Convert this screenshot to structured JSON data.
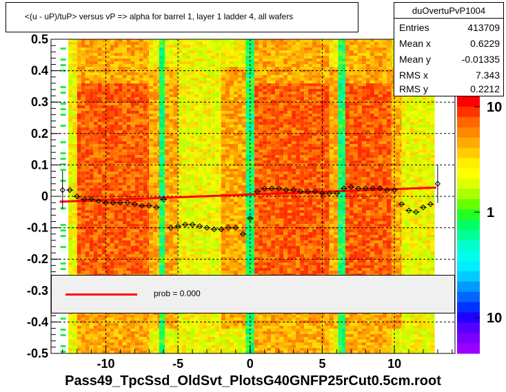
{
  "title": "<(u - uP)/tuP> versus   vP => alpha for barrel 1, layer 1 ladder 4, all wafers",
  "stats": {
    "name": "duOvertuPvP1004",
    "rows": [
      {
        "key": "Entries",
        "value": "413709"
      },
      {
        "key": "Mean x",
        "value": "0.6229"
      },
      {
        "key": "Mean y",
        "value": "-0.01335"
      },
      {
        "key": "RMS x",
        "value": "7.343"
      },
      {
        "key": "RMS y",
        "value": "0.2212"
      }
    ]
  },
  "legend": {
    "label": "prob = 0.000",
    "color": "#ff0000"
  },
  "filename": "Pass49_TpcSsd_OldSvt_PlotsG40GNFP25rCut0.5cm.root",
  "chart_data": {
    "type": "heatmap",
    "xlim": [
      -13.8,
      14.2
    ],
    "ylim": [
      -0.5,
      0.5
    ],
    "x_ticks": [
      -10,
      -5,
      0,
      5,
      10
    ],
    "x_tick_labels": [
      "-10",
      "-5",
      "0",
      "5",
      "10"
    ],
    "y_ticks": [
      -0.5,
      -0.4,
      -0.3,
      -0.2,
      -0.1,
      0,
      0.1,
      0.2,
      0.3,
      0.4,
      0.5
    ],
    "y_tick_labels": [
      "-0.5",
      "-0.4",
      "-0.3",
      "-0.2",
      "-0.1",
      "0",
      "0.1",
      "0.2",
      "0.3",
      "0.4",
      "0.5"
    ],
    "colorbar": {
      "scale": "log",
      "tick_labels": [
        "10",
        "1",
        "10"
      ]
    },
    "grid": true,
    "fit_line": {
      "x": [
        -13.2,
        12.9
      ],
      "y": [
        -0.017,
        0.028
      ],
      "color": "#ff0000"
    },
    "profile_points": [
      {
        "x": -13.0,
        "y": 0.02
      },
      {
        "x": -12.5,
        "y": 0.02
      },
      {
        "x": -12.0,
        "y": 0.0
      },
      {
        "x": -11.5,
        "y": -0.01
      },
      {
        "x": -11.0,
        "y": -0.01
      },
      {
        "x": -10.5,
        "y": -0.015
      },
      {
        "x": -10.0,
        "y": -0.02
      },
      {
        "x": -9.5,
        "y": -0.02
      },
      {
        "x": -9.0,
        "y": -0.02
      },
      {
        "x": -8.5,
        "y": -0.02
      },
      {
        "x": -8.0,
        "y": -0.025
      },
      {
        "x": -7.5,
        "y": -0.03
      },
      {
        "x": -7.0,
        "y": -0.03
      },
      {
        "x": -6.5,
        "y": -0.035
      },
      {
        "x": -6.0,
        "y": -0.01
      },
      {
        "x": -5.5,
        "y": -0.1
      },
      {
        "x": -5.0,
        "y": -0.095
      },
      {
        "x": -4.5,
        "y": -0.09
      },
      {
        "x": -4.0,
        "y": -0.09
      },
      {
        "x": -3.5,
        "y": -0.095
      },
      {
        "x": -3.0,
        "y": -0.1
      },
      {
        "x": -2.5,
        "y": -0.105
      },
      {
        "x": -2.0,
        "y": -0.105
      },
      {
        "x": -1.5,
        "y": -0.1
      },
      {
        "x": -1.0,
        "y": -0.1
      },
      {
        "x": -0.5,
        "y": -0.12
      },
      {
        "x": 0.0,
        "y": -0.07
      },
      {
        "x": 0.5,
        "y": 0.015
      },
      {
        "x": 1.0,
        "y": 0.025
      },
      {
        "x": 1.5,
        "y": 0.025
      },
      {
        "x": 2.0,
        "y": 0.025
      },
      {
        "x": 2.5,
        "y": 0.02
      },
      {
        "x": 3.0,
        "y": 0.02
      },
      {
        "x": 3.5,
        "y": 0.015
      },
      {
        "x": 4.0,
        "y": 0.015
      },
      {
        "x": 4.5,
        "y": 0.015
      },
      {
        "x": 5.0,
        "y": 0.01
      },
      {
        "x": 5.5,
        "y": 0.01
      },
      {
        "x": 6.0,
        "y": 0.01
      },
      {
        "x": 6.5,
        "y": 0.025
      },
      {
        "x": 7.0,
        "y": 0.03
      },
      {
        "x": 7.5,
        "y": 0.025
      },
      {
        "x": 8.0,
        "y": 0.025
      },
      {
        "x": 8.5,
        "y": 0.025
      },
      {
        "x": 9.0,
        "y": 0.025
      },
      {
        "x": 9.5,
        "y": 0.02
      },
      {
        "x": 10.0,
        "y": 0.02
      },
      {
        "x": 10.5,
        "y": -0.025
      },
      {
        "x": 11.0,
        "y": -0.045
      },
      {
        "x": 11.5,
        "y": -0.05
      },
      {
        "x": 12.0,
        "y": -0.035
      },
      {
        "x": 12.5,
        "y": -0.025
      },
      {
        "x": 13.0,
        "y": 0.04
      }
    ],
    "bands": [
      {
        "x0": -12.6,
        "x1": -12.0,
        "kind": "yellow"
      },
      {
        "x0": -12.0,
        "x1": -7.0,
        "kind": "hot"
      },
      {
        "x0": -7.0,
        "x1": -6.3,
        "kind": "warm"
      },
      {
        "x0": -6.3,
        "x1": -5.9,
        "kind": "green"
      },
      {
        "x0": -5.9,
        "x1": -5.0,
        "kind": "warm"
      },
      {
        "x0": -5.0,
        "x1": -2.0,
        "kind": "yellow"
      },
      {
        "x0": -2.0,
        "x1": -0.3,
        "kind": "warm"
      },
      {
        "x0": -0.3,
        "x1": 0.3,
        "kind": "green"
      },
      {
        "x0": 0.3,
        "x1": 5.5,
        "kind": "hot"
      },
      {
        "x0": 5.5,
        "x1": 6.1,
        "kind": "warm"
      },
      {
        "x0": 6.1,
        "x1": 6.6,
        "kind": "green"
      },
      {
        "x0": 6.6,
        "x1": 9.8,
        "kind": "hot"
      },
      {
        "x0": 9.8,
        "x1": 10.5,
        "kind": "warm"
      },
      {
        "x0": 10.5,
        "x1": 12.8,
        "kind": "yellow"
      }
    ]
  }
}
